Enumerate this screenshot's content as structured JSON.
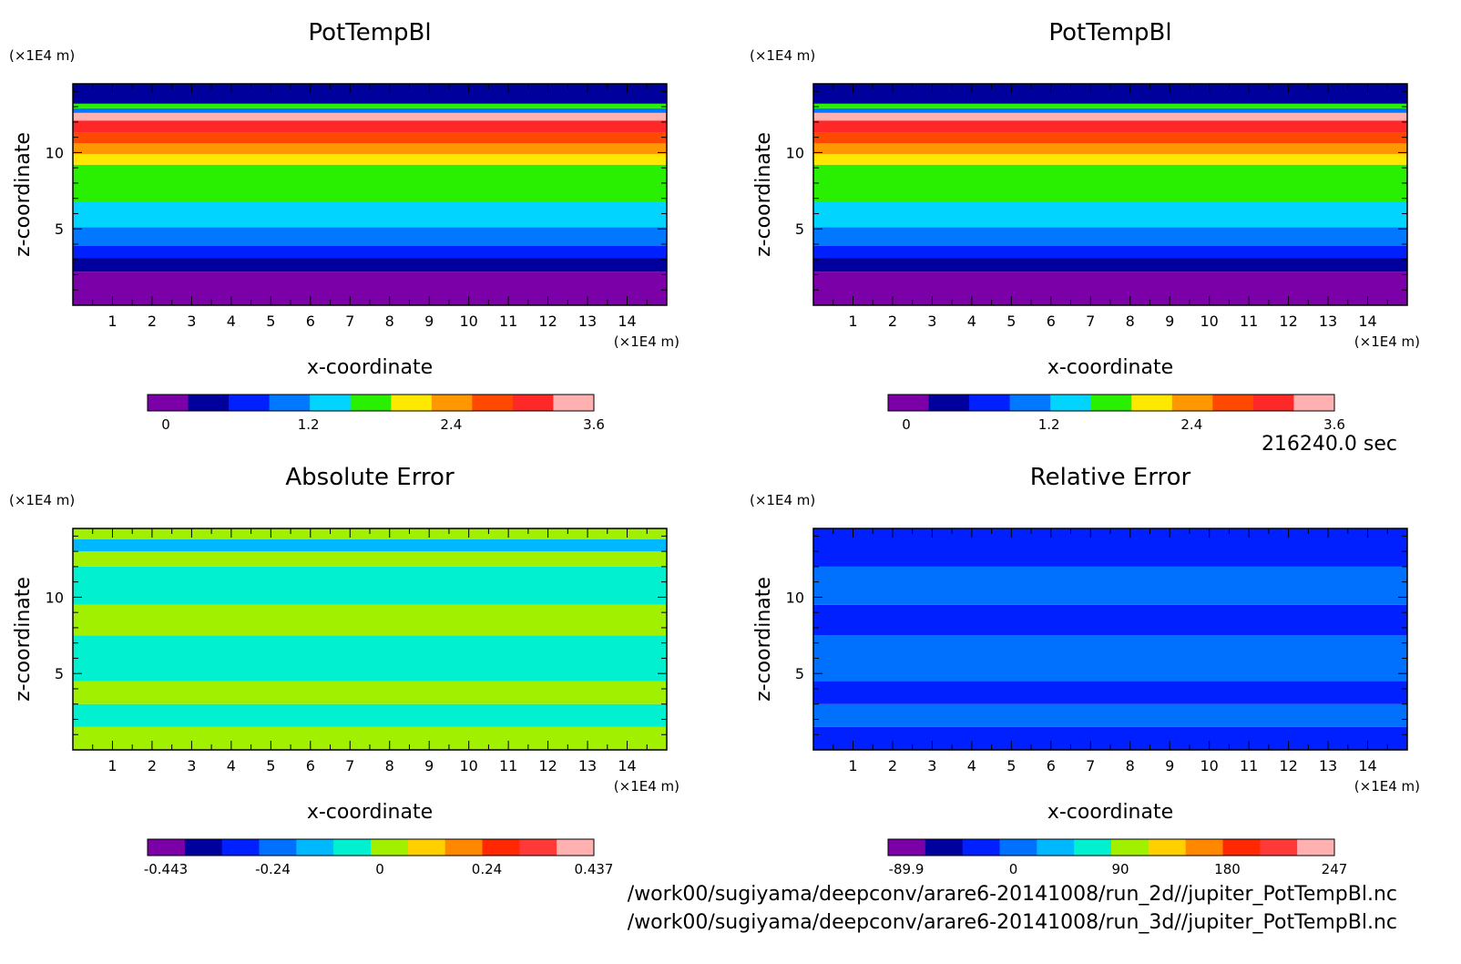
{
  "chart_data": [
    {
      "type": "heatmap",
      "title": "PotTempBl",
      "xlabel": "x-coordinate",
      "ylabel": "z-coordinate",
      "x_unit": "(×1E4 m)",
      "y_unit": "(×1E4 m)",
      "xlim": [
        0,
        15
      ],
      "ylim": [
        0,
        14.5
      ],
      "x_ticks": [
        "1",
        "2",
        "3",
        "4",
        "5",
        "6",
        "7",
        "8",
        "9",
        "10",
        "11",
        "12",
        "13",
        "14"
      ],
      "y_ticks": [
        "5",
        "10"
      ],
      "colorbar": {
        "ticks": [
          "0",
          "1.2",
          "2.4",
          "3.6"
        ],
        "colors": [
          "#7b00a8",
          "#00009c",
          "#0020ff",
          "#0078ff",
          "#00d4ff",
          "#28f000",
          "#ffe800",
          "#ff9800",
          "#ff4800",
          "#ff2828",
          "#ffb0b0"
        ]
      },
      "bands": [
        {
          "z0": 0.0,
          "z1": 2.2,
          "level": 0
        },
        {
          "z0": 2.2,
          "z1": 3.1,
          "level": 1
        },
        {
          "z0": 3.1,
          "z1": 3.9,
          "level": 2
        },
        {
          "z0": 3.9,
          "z1": 5.1,
          "level": 3
        },
        {
          "z0": 5.1,
          "z1": 6.8,
          "level": 4
        },
        {
          "z0": 6.8,
          "z1": 9.2,
          "level": 5
        },
        {
          "z0": 9.2,
          "z1": 9.9,
          "level": 6
        },
        {
          "z0": 9.9,
          "z1": 10.6,
          "level": 7
        },
        {
          "z0": 10.6,
          "z1": 11.3,
          "level": 8
        },
        {
          "z0": 11.3,
          "z1": 12.1,
          "level": 9
        },
        {
          "z0": 12.1,
          "z1": 12.6,
          "level": 10
        },
        {
          "z0": 12.6,
          "z1": 12.9,
          "level": 3
        },
        {
          "z0": 12.9,
          "z1": 13.2,
          "level": 5
        },
        {
          "z0": 13.2,
          "z1": 14.5,
          "level": 1
        }
      ]
    },
    {
      "type": "heatmap",
      "title": "PotTempBl",
      "xlabel": "x-coordinate",
      "ylabel": "z-coordinate",
      "x_unit": "(×1E4 m)",
      "y_unit": "(×1E4 m)",
      "xlim": [
        0,
        15
      ],
      "ylim": [
        0,
        14.5
      ],
      "x_ticks": [
        "1",
        "2",
        "3",
        "4",
        "5",
        "6",
        "7",
        "8",
        "9",
        "10",
        "11",
        "12",
        "13",
        "14"
      ],
      "y_ticks": [
        "5",
        "10"
      ],
      "colorbar": {
        "ticks": [
          "0",
          "1.2",
          "2.4",
          "3.6"
        ],
        "colors": [
          "#7b00a8",
          "#00009c",
          "#0020ff",
          "#0078ff",
          "#00d4ff",
          "#28f000",
          "#ffe800",
          "#ff9800",
          "#ff4800",
          "#ff2828",
          "#ffb0b0"
        ]
      },
      "bands": [
        {
          "z0": 0.0,
          "z1": 2.2,
          "level": 0
        },
        {
          "z0": 2.2,
          "z1": 3.1,
          "level": 1
        },
        {
          "z0": 3.1,
          "z1": 3.9,
          "level": 2
        },
        {
          "z0": 3.9,
          "z1": 5.1,
          "level": 3
        },
        {
          "z0": 5.1,
          "z1": 6.8,
          "level": 4
        },
        {
          "z0": 6.8,
          "z1": 9.2,
          "level": 5
        },
        {
          "z0": 9.2,
          "z1": 9.9,
          "level": 6
        },
        {
          "z0": 9.9,
          "z1": 10.6,
          "level": 7
        },
        {
          "z0": 10.6,
          "z1": 11.3,
          "level": 8
        },
        {
          "z0": 11.3,
          "z1": 12.1,
          "level": 9
        },
        {
          "z0": 12.1,
          "z1": 12.6,
          "level": 10
        },
        {
          "z0": 12.6,
          "z1": 12.9,
          "level": 3
        },
        {
          "z0": 12.9,
          "z1": 13.2,
          "level": 5
        },
        {
          "z0": 13.2,
          "z1": 14.5,
          "level": 1
        }
      ]
    },
    {
      "type": "heatmap",
      "title": "Absolute Error",
      "xlabel": "x-coordinate",
      "ylabel": "z-coordinate",
      "x_unit": "(×1E4 m)",
      "y_unit": "(×1E4 m)",
      "xlim": [
        0,
        15
      ],
      "ylim": [
        0,
        14.5
      ],
      "x_ticks": [
        "1",
        "2",
        "3",
        "4",
        "5",
        "6",
        "7",
        "8",
        "9",
        "10",
        "11",
        "12",
        "13",
        "14"
      ],
      "y_ticks": [
        "5",
        "10"
      ],
      "colorbar": {
        "ticks": [
          "-0.443",
          "-0.24",
          "0",
          "0.24",
          "0.437"
        ],
        "colors": [
          "#7b00a8",
          "#00009c",
          "#0020ff",
          "#0070ff",
          "#00b8ff",
          "#00f0d0",
          "#a0f000",
          "#ffd000",
          "#ff8800",
          "#ff2800",
          "#ff3838",
          "#ffb0b0"
        ]
      },
      "bands": [
        {
          "z0": 0.0,
          "z1": 1.5,
          "level": 6
        },
        {
          "z0": 1.5,
          "z1": 3.0,
          "level": 5
        },
        {
          "z0": 3.0,
          "z1": 4.5,
          "level": 6
        },
        {
          "z0": 4.5,
          "z1": 7.5,
          "level": 5
        },
        {
          "z0": 7.5,
          "z1": 9.5,
          "level": 6
        },
        {
          "z0": 9.5,
          "z1": 12.0,
          "level": 5
        },
        {
          "z0": 12.0,
          "z1": 13.0,
          "level": 6
        },
        {
          "z0": 13.0,
          "z1": 13.8,
          "level": 4
        },
        {
          "z0": 13.8,
          "z1": 14.5,
          "level": 6
        }
      ]
    },
    {
      "type": "heatmap",
      "title": "Relative Error",
      "xlabel": "x-coordinate",
      "ylabel": "z-coordinate",
      "x_unit": "(×1E4 m)",
      "y_unit": "(×1E4 m)",
      "xlim": [
        0,
        15
      ],
      "ylim": [
        0,
        14.5
      ],
      "x_ticks": [
        "1",
        "2",
        "3",
        "4",
        "5",
        "6",
        "7",
        "8",
        "9",
        "10",
        "11",
        "12",
        "13",
        "14"
      ],
      "y_ticks": [
        "5",
        "10"
      ],
      "colorbar": {
        "ticks": [
          "-89.9",
          "0",
          "90",
          "180",
          "247"
        ],
        "colors": [
          "#7b00a8",
          "#00009c",
          "#0020ff",
          "#0070ff",
          "#00b8ff",
          "#00f0d0",
          "#a0f000",
          "#ffd000",
          "#ff8800",
          "#ff2800",
          "#ff3838",
          "#ffb0b0"
        ]
      },
      "bands": [
        {
          "z0": 0.0,
          "z1": 1.5,
          "level": 2
        },
        {
          "z0": 1.5,
          "z1": 3.0,
          "level": 3
        },
        {
          "z0": 3.0,
          "z1": 4.5,
          "level": 2
        },
        {
          "z0": 4.5,
          "z1": 7.5,
          "level": 3
        },
        {
          "z0": 7.5,
          "z1": 9.5,
          "level": 2
        },
        {
          "z0": 9.5,
          "z1": 12.0,
          "level": 3
        },
        {
          "z0": 12.0,
          "z1": 14.5,
          "level": 2
        }
      ]
    }
  ],
  "info": {
    "time": "216240.0 sec",
    "file1": "/work00/sugiyama/deepconv/arare6-20141008/run_2d//jupiter_PotTempBl.nc",
    "file2": "/work00/sugiyama/deepconv/arare6-20141008/run_3d//jupiter_PotTempBl.nc"
  }
}
